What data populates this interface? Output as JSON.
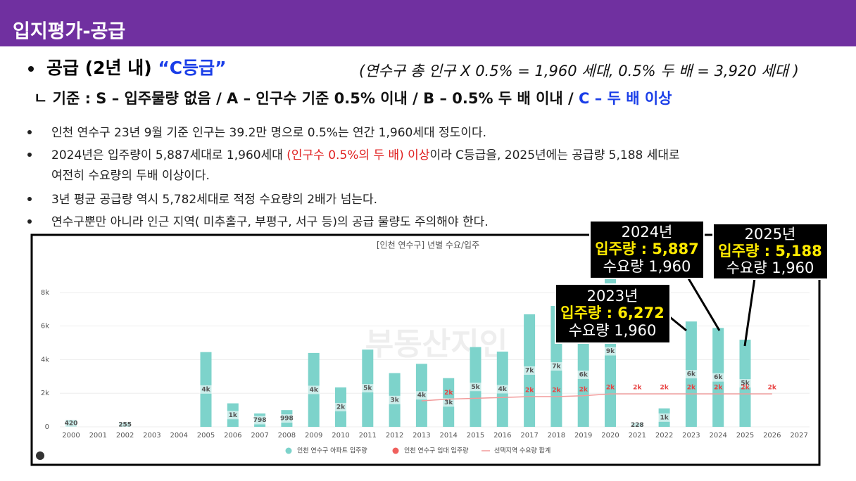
{
  "header": {
    "title": "입지평가-공급"
  },
  "heading": {
    "text": "공급 (2년 내) ",
    "grade": "“C등급”",
    "formula": "(연수구 총 인구 X 0.5% = 1,960 세대, 0.5% 두 배 = 3,920 세대 )"
  },
  "criteria": {
    "text": "ㄴ 기준 : S – 입주물량 없음 / A – 인구수 기준 0.5% 이내 / B – 0.5% 두 배 이내 / ",
    "highlight": "C – 두 배 이상"
  },
  "bullets": [
    {
      "text": "인천 연수구 23년 9월 기준 인구는 39.2만 명으로 0.5%는 연간 1,960세대 정도이다."
    },
    {
      "text": "2024년은 입주량이 5,887세대로 1,960세대 ",
      "highlight": "(인구수 0.5%의 두 배) 이상",
      "after": "이라 C등급을, 2025년에는 공급량 5,188 세대로",
      "continued": "여전히 수요량의 두배 이상이다."
    },
    {
      "text": "3년 평균 공급량 역시 5,782세대로 적정 수요량의 2배가 넘는다."
    },
    {
      "text": "연수구뿐만 아니라 인근 지역( 미추홀구, 부평구, 서구 등)의 공급 물량도 주의해야 한다."
    }
  ],
  "chart_data": {
    "type": "bar",
    "title": "[인천 연수구] 년별 수요/입주",
    "watermark": "부동산지인",
    "categories": [
      "2000",
      "2001",
      "2002",
      "2003",
      "2004",
      "2005",
      "2006",
      "2007",
      "2008",
      "2009",
      "2010",
      "2011",
      "2012",
      "2013",
      "2014",
      "2015",
      "2016",
      "2017",
      "2018",
      "2019",
      "2020",
      "2021",
      "2022",
      "2023",
      "2024",
      "2025",
      "2026",
      "2027"
    ],
    "series": [
      {
        "name": "인천 연수구 아파트 입주량",
        "color": "#7dd3cb",
        "values": [
          420,
          null,
          255,
          null,
          null,
          4450,
          1400,
          798,
          998,
          4400,
          2350,
          4600,
          3200,
          3750,
          2900,
          4750,
          4480,
          6700,
          7200,
          6200,
          9000,
          228,
          1100,
          6272,
          5887,
          5188,
          null,
          null
        ],
        "value_labels": [
          "420",
          null,
          "255",
          null,
          null,
          "4k",
          "1k",
          "798",
          "998",
          "4k",
          "2k",
          "5k",
          "3k",
          "4k",
          "3k",
          "5k",
          "4k",
          "7k",
          "7k",
          "6k",
          "9k",
          "228",
          "1k",
          "6k",
          "6k",
          "5k",
          null,
          null
        ]
      },
      {
        "name": "인천 연수구 임대 입주량",
        "color": "#f0605d",
        "values": [
          null,
          null,
          null,
          null,
          null,
          null,
          null,
          null,
          null,
          null,
          null,
          null,
          null,
          null,
          null,
          null,
          null,
          null,
          null,
          null,
          null,
          null,
          null,
          null,
          null,
          null,
          null,
          null
        ]
      },
      {
        "name": "선택지역 수요량 합계",
        "type": "line",
        "color": "#f29a9a",
        "values": [
          null,
          null,
          null,
          null,
          null,
          null,
          null,
          null,
          null,
          null,
          null,
          null,
          null,
          1550,
          1650,
          1700,
          1750,
          1800,
          1800,
          1850,
          1960,
          1960,
          1960,
          1960,
          1960,
          1960,
          1960,
          null
        ],
        "value_labels": [
          null,
          null,
          null,
          null,
          null,
          null,
          null,
          null,
          null,
          null,
          null,
          null,
          null,
          null,
          "2k",
          null,
          null,
          "2k",
          "2k",
          "2k",
          "2k",
          "2k",
          "2k",
          "2k",
          "2k",
          "2k",
          "2k",
          null
        ]
      }
    ],
    "ylim": [
      0,
      9000
    ],
    "yticks": [
      0,
      {
        "value": 2000,
        "label": "2k"
      },
      {
        "value": 4000,
        "label": "4k"
      },
      {
        "value": 6000,
        "label": "6k"
      },
      {
        "value": 8000,
        "label": "8k"
      }
    ],
    "grid": true,
    "annotations": [
      {
        "title": "2023년",
        "supply": "입주량 : 6,272",
        "demand": "수요량 1,960"
      },
      {
        "title": "2024년",
        "supply": "입주량 : 5,887",
        "demand": "수요량 1,960"
      },
      {
        "title": "2025년",
        "supply": "입주량 : 5,188",
        "demand": "수요량 1,960"
      }
    ]
  }
}
